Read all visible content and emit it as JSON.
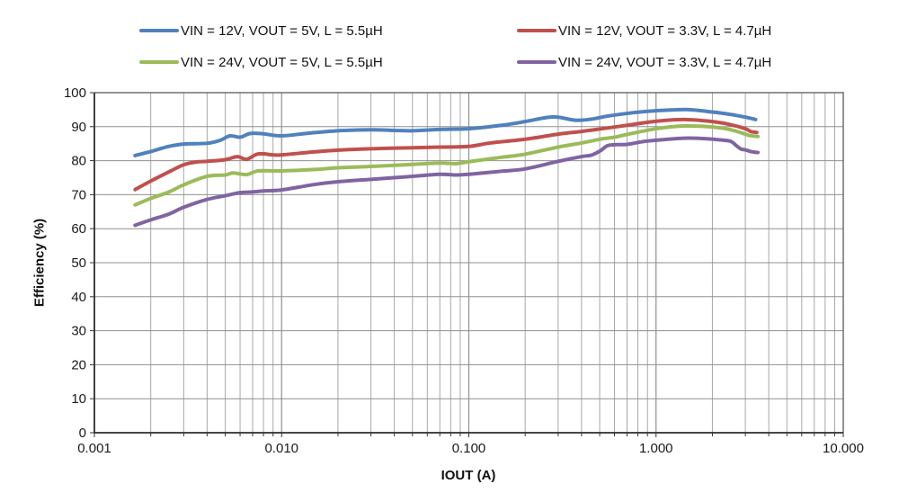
{
  "chart_data": {
    "type": "line",
    "title": "",
    "xlabel": "IOUT (A)",
    "ylabel": "Efficiency (%)",
    "x_axis": {
      "scale": "log",
      "min": 0.001,
      "max": 10,
      "tick_values": [
        0.001,
        0.01,
        0.1,
        1,
        10
      ],
      "tick_labels": [
        "0.001",
        "0.010",
        "0.100",
        "1.000",
        "10.000"
      ]
    },
    "y_axis": {
      "scale": "linear",
      "min": 0,
      "max": 100,
      "tick_step": 10,
      "tick_values": [
        0,
        10,
        20,
        30,
        40,
        50,
        60,
        70,
        80,
        90,
        100
      ]
    },
    "grid": {
      "horizontal_major": true,
      "vertical_log_minor": true
    },
    "legend_position": "top",
    "series": [
      {
        "label": "VIN = 12V, VOUT = 5V, L = 5.5µH",
        "color": "#4F81BD",
        "points": [
          [
            0.00165,
            81.5
          ],
          [
            0.002,
            82.7
          ],
          [
            0.0025,
            84.2
          ],
          [
            0.003,
            84.9
          ],
          [
            0.004,
            85.1
          ],
          [
            0.0047,
            86.0
          ],
          [
            0.0053,
            87.3
          ],
          [
            0.006,
            86.9
          ],
          [
            0.0068,
            88.0
          ],
          [
            0.008,
            87.9
          ],
          [
            0.01,
            87.3
          ],
          [
            0.014,
            88.1
          ],
          [
            0.02,
            88.8
          ],
          [
            0.03,
            89.1
          ],
          [
            0.04,
            88.9
          ],
          [
            0.05,
            88.8
          ],
          [
            0.07,
            89.2
          ],
          [
            0.1,
            89.4
          ],
          [
            0.15,
            90.4
          ],
          [
            0.2,
            91.5
          ],
          [
            0.26,
            92.7
          ],
          [
            0.3,
            92.8
          ],
          [
            0.37,
            91.9
          ],
          [
            0.45,
            92.2
          ],
          [
            0.55,
            93.1
          ],
          [
            0.7,
            93.9
          ],
          [
            0.9,
            94.5
          ],
          [
            1.2,
            94.9
          ],
          [
            1.5,
            95.0
          ],
          [
            2.0,
            94.3
          ],
          [
            2.5,
            93.6
          ],
          [
            3.0,
            92.8
          ],
          [
            3.4,
            92.1
          ]
        ]
      },
      {
        "label": "VIN = 12V, VOUT = 3.3V, L = 4.7µH",
        "color": "#C0504D",
        "points": [
          [
            0.00165,
            71.5
          ],
          [
            0.002,
            74.0
          ],
          [
            0.0025,
            76.7
          ],
          [
            0.003,
            78.8
          ],
          [
            0.0035,
            79.6
          ],
          [
            0.004,
            79.8
          ],
          [
            0.005,
            80.3
          ],
          [
            0.0058,
            81.2
          ],
          [
            0.0065,
            80.4
          ],
          [
            0.0075,
            82.0
          ],
          [
            0.009,
            81.7
          ],
          [
            0.01,
            81.7
          ],
          [
            0.015,
            82.6
          ],
          [
            0.02,
            83.1
          ],
          [
            0.03,
            83.5
          ],
          [
            0.05,
            83.8
          ],
          [
            0.07,
            84.0
          ],
          [
            0.1,
            84.2
          ],
          [
            0.13,
            85.2
          ],
          [
            0.2,
            86.3
          ],
          [
            0.3,
            87.8
          ],
          [
            0.4,
            88.6
          ],
          [
            0.5,
            89.3
          ],
          [
            0.7,
            90.4
          ],
          [
            1.0,
            91.6
          ],
          [
            1.4,
            92.1
          ],
          [
            2.0,
            91.5
          ],
          [
            2.5,
            90.6
          ],
          [
            3.0,
            89.4
          ],
          [
            3.2,
            88.6
          ],
          [
            3.45,
            88.3
          ]
        ]
      },
      {
        "label": "VIN = 24V, VOUT = 5V, L = 5.5µH",
        "color": "#9BBB59",
        "points": [
          [
            0.00165,
            67.0
          ],
          [
            0.002,
            68.9
          ],
          [
            0.0025,
            70.8
          ],
          [
            0.003,
            72.9
          ],
          [
            0.004,
            75.4
          ],
          [
            0.005,
            75.8
          ],
          [
            0.0055,
            76.4
          ],
          [
            0.0065,
            75.9
          ],
          [
            0.0075,
            77.0
          ],
          [
            0.01,
            77.0
          ],
          [
            0.015,
            77.4
          ],
          [
            0.02,
            77.9
          ],
          [
            0.03,
            78.3
          ],
          [
            0.05,
            78.9
          ],
          [
            0.07,
            79.3
          ],
          [
            0.085,
            79.1
          ],
          [
            0.1,
            79.7
          ],
          [
            0.15,
            81.0
          ],
          [
            0.2,
            81.9
          ],
          [
            0.3,
            84.0
          ],
          [
            0.4,
            85.2
          ],
          [
            0.5,
            86.3
          ],
          [
            0.6,
            86.9
          ],
          [
            0.7,
            87.7
          ],
          [
            1.0,
            89.4
          ],
          [
            1.4,
            90.2
          ],
          [
            2.0,
            89.9
          ],
          [
            2.5,
            89.1
          ],
          [
            3.0,
            87.8
          ],
          [
            3.15,
            87.4
          ],
          [
            3.5,
            87.1
          ]
        ]
      },
      {
        "label": "VIN = 24V, VOUT = 3.3V, L = 4.7µH",
        "color": "#8064A2",
        "points": [
          [
            0.00165,
            61.0
          ],
          [
            0.002,
            62.6
          ],
          [
            0.0025,
            64.3
          ],
          [
            0.003,
            66.3
          ],
          [
            0.004,
            68.6
          ],
          [
            0.005,
            69.7
          ],
          [
            0.006,
            70.6
          ],
          [
            0.007,
            70.8
          ],
          [
            0.008,
            71.1
          ],
          [
            0.01,
            71.4
          ],
          [
            0.015,
            73.0
          ],
          [
            0.02,
            73.8
          ],
          [
            0.03,
            74.5
          ],
          [
            0.04,
            75.0
          ],
          [
            0.05,
            75.4
          ],
          [
            0.07,
            76.0
          ],
          [
            0.085,
            75.8
          ],
          [
            0.1,
            76.0
          ],
          [
            0.15,
            76.9
          ],
          [
            0.2,
            77.6
          ],
          [
            0.3,
            79.8
          ],
          [
            0.4,
            81.2
          ],
          [
            0.45,
            81.6
          ],
          [
            0.5,
            82.8
          ],
          [
            0.55,
            84.4
          ],
          [
            0.6,
            84.7
          ],
          [
            0.7,
            84.8
          ],
          [
            0.85,
            85.6
          ],
          [
            1.0,
            86.0
          ],
          [
            1.4,
            86.6
          ],
          [
            1.8,
            86.5
          ],
          [
            2.2,
            86.1
          ],
          [
            2.5,
            85.7
          ],
          [
            2.7,
            84.3
          ],
          [
            2.85,
            83.4
          ],
          [
            3.0,
            83.2
          ],
          [
            3.2,
            82.7
          ],
          [
            3.5,
            82.4
          ]
        ]
      }
    ],
    "style_colors": {
      "grid_minor": "#a8a8a8",
      "grid_major": "#8f8f8f",
      "plot_border": "#595959",
      "axis_line": "#333333",
      "tick_text": "#1a1a1a"
    }
  }
}
